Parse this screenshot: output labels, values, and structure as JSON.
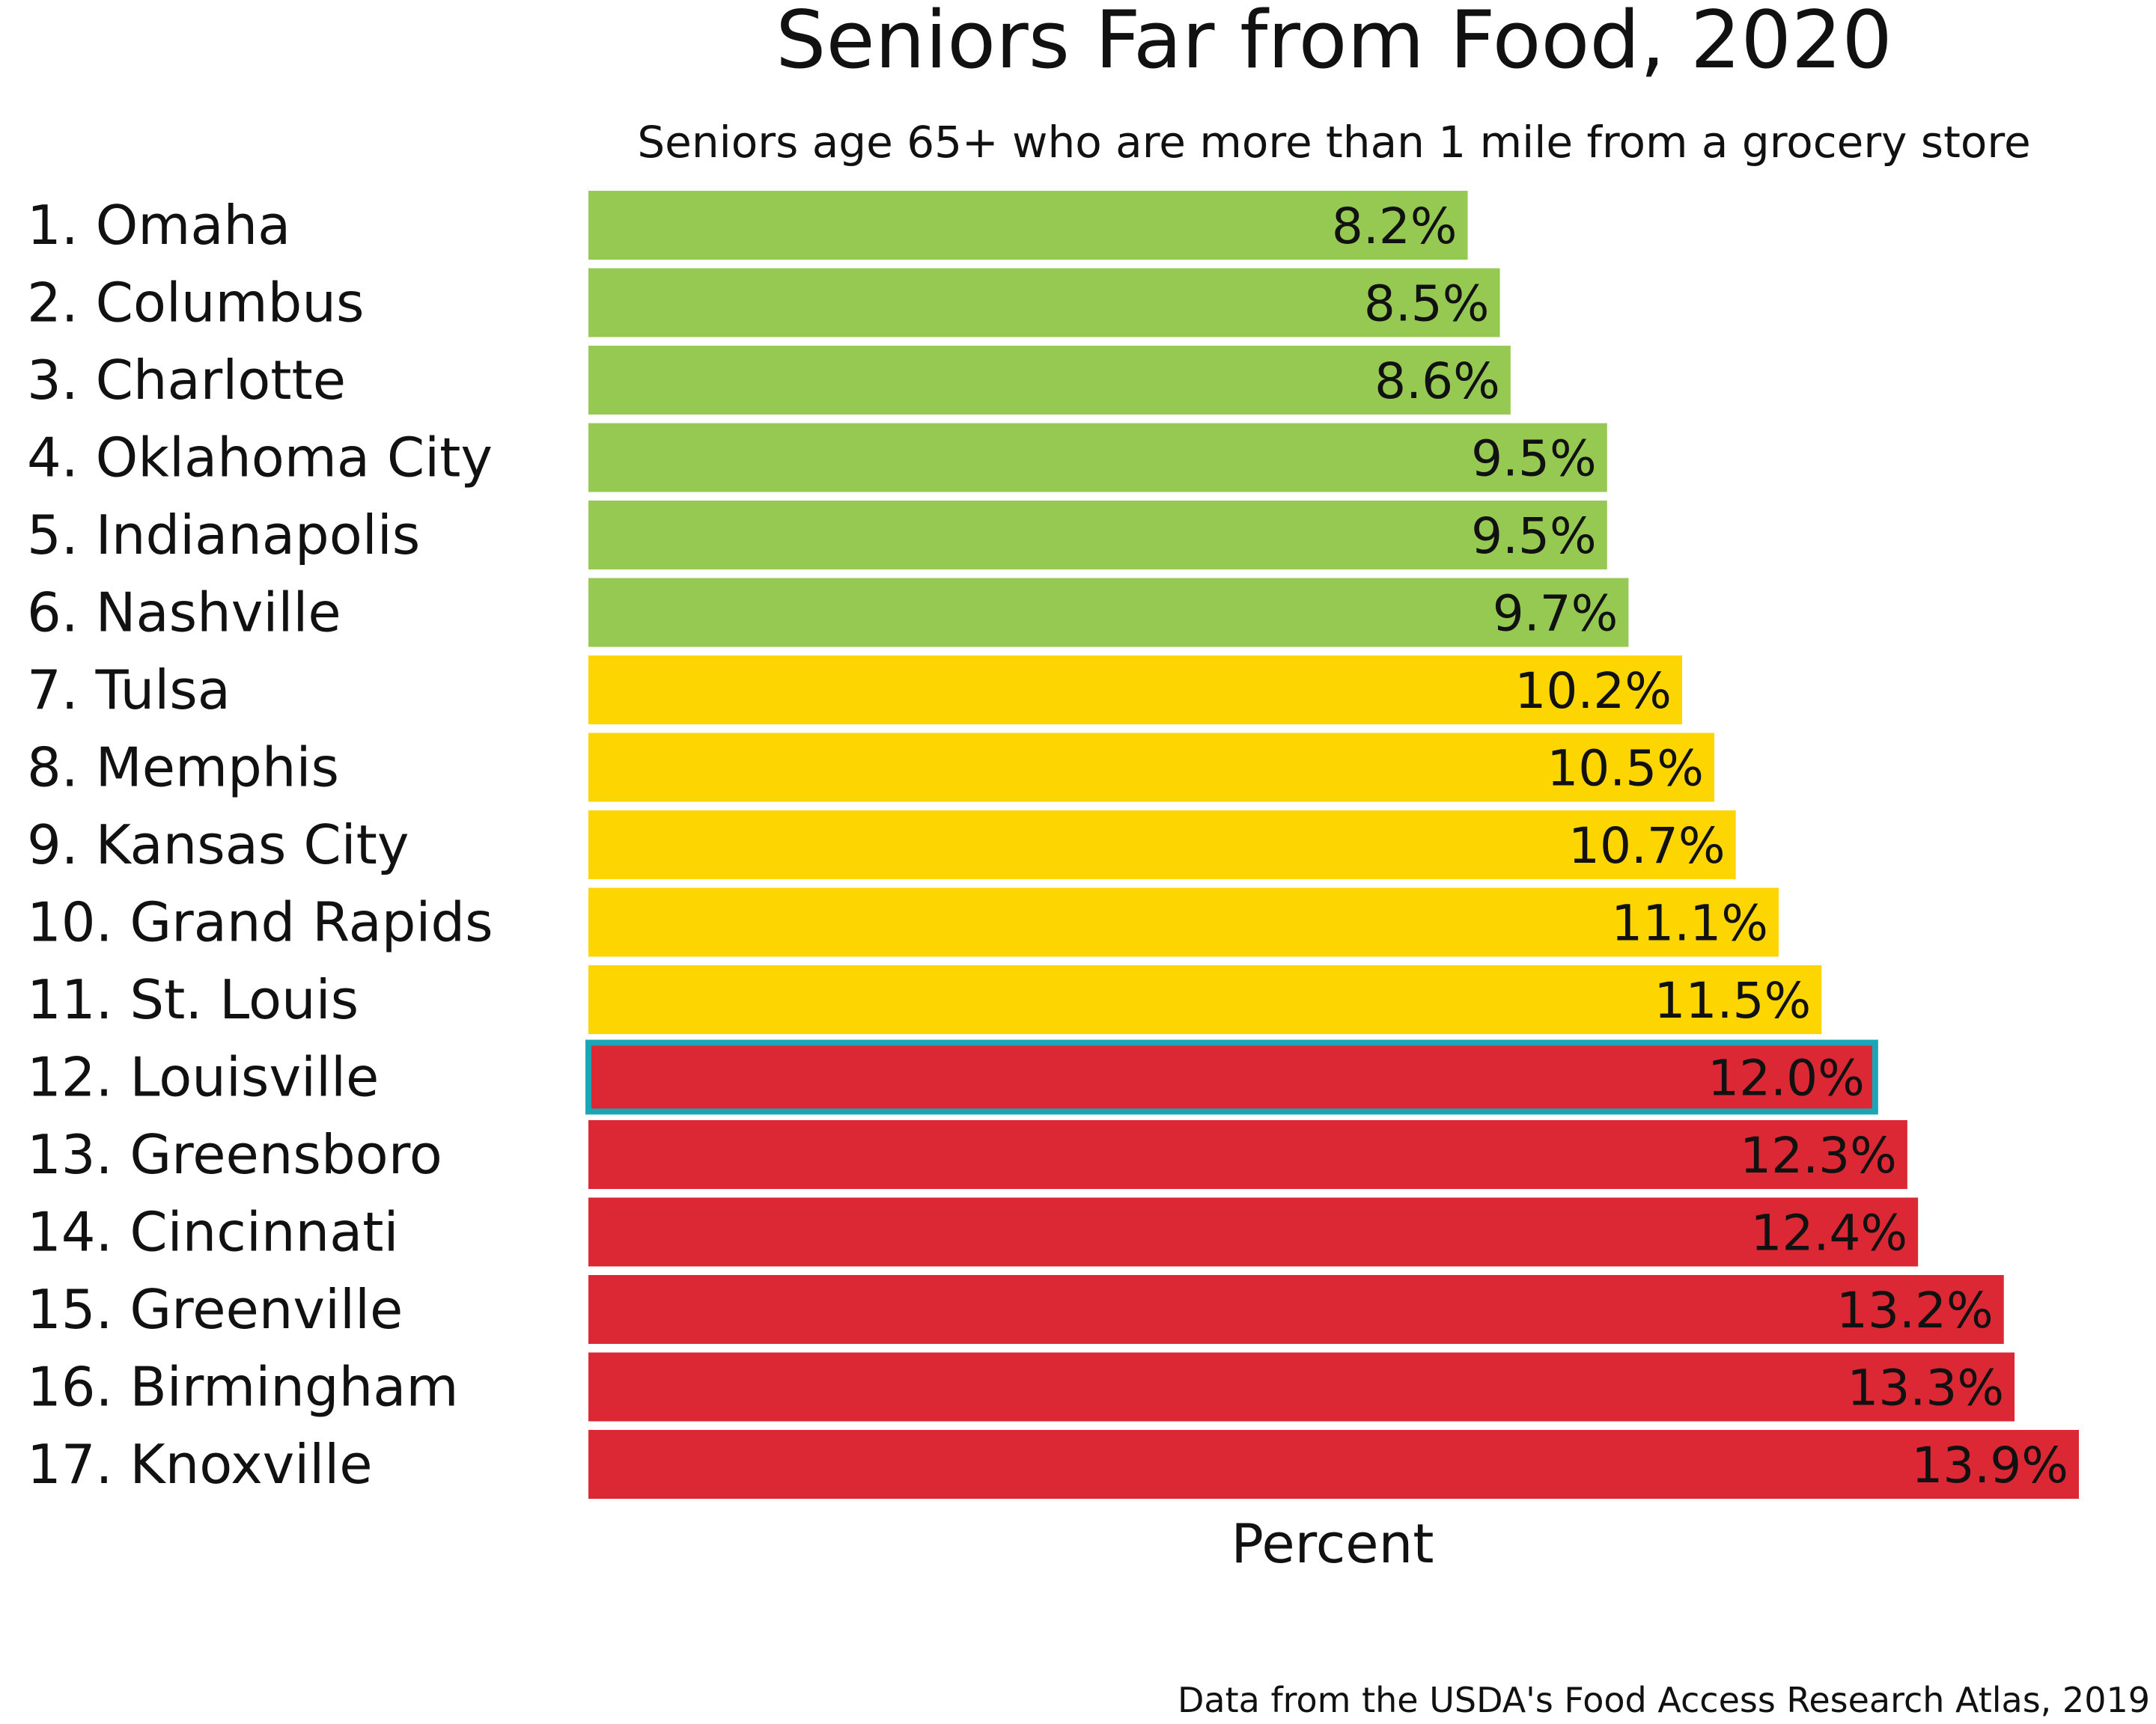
{
  "chart_data": {
    "type": "bar",
    "orientation": "horizontal",
    "title": "Seniors Far from Food, 2020",
    "subtitle": "Seniors age 65+ who are more than 1 mile from a grocery store",
    "xlabel": "Percent",
    "ylabel": "",
    "source": "Data from the USDA's Food Access Research Atlas, 2019",
    "categories": [
      "1. Omaha",
      "2. Columbus",
      "3. Charlotte",
      "4. Oklahoma City",
      "5. Indianapolis",
      "6. Nashville",
      "7. Tulsa",
      "8. Memphis",
      "9. Kansas City",
      "10. Grand Rapids",
      "11. St. Louis",
      "12. Louisville",
      "13. Greensboro",
      "14. Cincinnati",
      "15. Greenville",
      "16. Birmingham",
      "17. Knoxville"
    ],
    "values": [
      8.2,
      8.5,
      8.6,
      9.5,
      9.5,
      9.7,
      10.2,
      10.5,
      10.7,
      11.1,
      11.5,
      12.0,
      12.3,
      12.4,
      13.2,
      13.3,
      13.9
    ],
    "value_labels": [
      "8.2%",
      "8.5%",
      "8.6%",
      "9.5%",
      "9.5%",
      "9.7%",
      "10.2%",
      "10.5%",
      "10.7%",
      "11.1%",
      "11.5%",
      "12.0%",
      "12.3%",
      "12.4%",
      "13.2%",
      "13.3%",
      "13.9%"
    ],
    "bar_colors": [
      "#95c952",
      "#95c952",
      "#95c952",
      "#95c952",
      "#95c952",
      "#95c952",
      "#fdd500",
      "#fdd500",
      "#fdd500",
      "#fdd500",
      "#fdd500",
      "#dc2834",
      "#dc2834",
      "#dc2834",
      "#dc2834",
      "#dc2834",
      "#dc2834"
    ],
    "highlight": {
      "category": "12. Louisville",
      "color": "#1aa6b4"
    },
    "xlim": [
      0,
      13.9
    ],
    "grid": false,
    "legend": "none"
  }
}
